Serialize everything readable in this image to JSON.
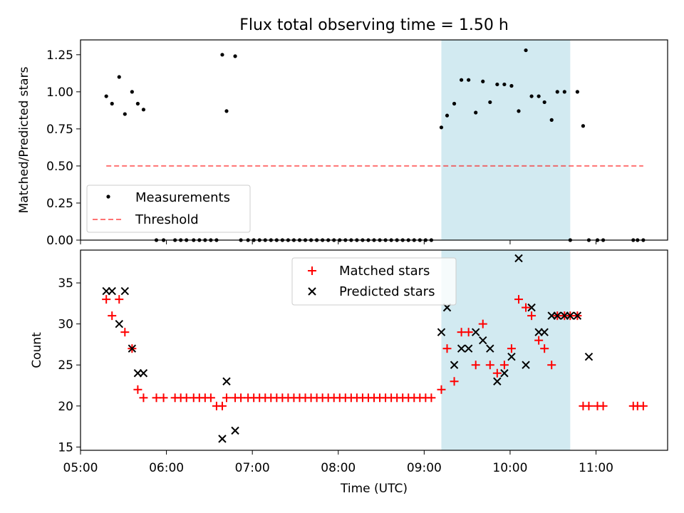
{
  "title": "Flux total observing time = 1.50 h",
  "colors": {
    "band": "#add8e6",
    "threshold": "#ff0000",
    "measurement": "#000000",
    "matched": "#ff0000",
    "predicted": "#000000"
  },
  "chart_data": [
    {
      "type": "scatter",
      "ylabel": "Matched/Predicted stars",
      "ylim": [
        0,
        1.35
      ],
      "yticks": [
        0.0,
        0.25,
        0.5,
        0.75,
        1.0,
        1.25
      ],
      "yticklabels": [
        "0.00",
        "0.25",
        "0.50",
        "0.75",
        "1.00",
        "1.25"
      ],
      "xlim": [
        "05:00",
        "11:50"
      ],
      "legend_position": "lower-left",
      "highlight_span": [
        "09:12",
        "10:42"
      ],
      "series": [
        {
          "name": "Measurements",
          "marker": "dot",
          "x": [
            "05:18",
            "05:22",
            "05:27",
            "05:31",
            "05:36",
            "05:40",
            "05:44",
            "05:53",
            "05:58",
            "06:06",
            "06:10",
            "06:14",
            "06:19",
            "06:23",
            "06:27",
            "06:31",
            "06:35",
            "06:39",
            "06:42",
            "06:48",
            "06:52",
            "06:57",
            "07:01",
            "07:05",
            "07:09",
            "07:13",
            "07:17",
            "07:21",
            "07:25",
            "07:29",
            "07:33",
            "07:37",
            "07:41",
            "07:45",
            "07:49",
            "07:53",
            "07:57",
            "08:01",
            "08:05",
            "08:09",
            "08:13",
            "08:17",
            "08:21",
            "08:25",
            "08:29",
            "08:33",
            "08:37",
            "08:41",
            "08:45",
            "08:49",
            "08:53",
            "08:57",
            "09:01",
            "09:05",
            "09:12",
            "09:16",
            "09:21",
            "09:26",
            "09:31",
            "09:36",
            "09:41",
            "09:46",
            "09:51",
            "09:56",
            "10:01",
            "10:06",
            "10:11",
            "10:15",
            "10:20",
            "10:24",
            "10:29",
            "10:33",
            "10:38",
            "10:42",
            "10:47",
            "10:51",
            "10:55",
            "11:01",
            "11:05",
            "11:26",
            "11:29",
            "11:33"
          ],
          "y": [
            0.97,
            0.92,
            1.1,
            0.85,
            1.0,
            0.92,
            0.88,
            0,
            0,
            0,
            0,
            0,
            0,
            0,
            0,
            0,
            0,
            1.25,
            0.87,
            1.24,
            0,
            0,
            0,
            0,
            0,
            0,
            0,
            0,
            0,
            0,
            0,
            0,
            0,
            0,
            0,
            0,
            0,
            0,
            0,
            0,
            0,
            0,
            0,
            0,
            0,
            0,
            0,
            0,
            0,
            0,
            0,
            0,
            0,
            0,
            0.76,
            0.84,
            0.92,
            1.08,
            1.08,
            0.86,
            1.07,
            0.93,
            1.05,
            1.05,
            1.04,
            0.87,
            1.28,
            0.97,
            0.97,
            0.93,
            0.81,
            1.0,
            1.0,
            0,
            1.0,
            0.77,
            0,
            0,
            0,
            0,
            0,
            0
          ]
        },
        {
          "name": "Threshold",
          "marker": "dashed-line",
          "x": [
            "05:18",
            "11:33"
          ],
          "y": [
            0.5,
            0.5
          ]
        }
      ]
    },
    {
      "type": "scatter",
      "xlabel": "Time (UTC)",
      "ylabel": "Count",
      "ylim": [
        14.6,
        39.0
      ],
      "yticks": [
        15,
        20,
        25,
        30,
        35
      ],
      "xticks": [
        "05:00",
        "06:00",
        "07:00",
        "08:00",
        "09:00",
        "10:00",
        "11:00"
      ],
      "xlim": [
        "05:00",
        "11:50"
      ],
      "legend_position": "upper-center",
      "highlight_span": [
        "09:12",
        "10:42"
      ],
      "series": [
        {
          "name": "Matched stars",
          "marker": "plus",
          "x": [
            "05:18",
            "05:22",
            "05:27",
            "05:31",
            "05:36",
            "05:40",
            "05:44",
            "05:53",
            "05:58",
            "06:06",
            "06:10",
            "06:14",
            "06:19",
            "06:23",
            "06:27",
            "06:31",
            "06:35",
            "06:39",
            "06:42",
            "06:48",
            "06:52",
            "06:57",
            "07:01",
            "07:05",
            "07:09",
            "07:13",
            "07:17",
            "07:21",
            "07:25",
            "07:29",
            "07:33",
            "07:37",
            "07:41",
            "07:45",
            "07:49",
            "07:53",
            "07:57",
            "08:01",
            "08:05",
            "08:09",
            "08:13",
            "08:17",
            "08:21",
            "08:25",
            "08:29",
            "08:33",
            "08:37",
            "08:41",
            "08:45",
            "08:49",
            "08:53",
            "08:57",
            "09:01",
            "09:05",
            "09:12",
            "09:16",
            "09:21",
            "09:26",
            "09:31",
            "09:36",
            "09:41",
            "09:46",
            "09:51",
            "09:56",
            "10:01",
            "10:06",
            "10:11",
            "10:15",
            "10:20",
            "10:24",
            "10:29",
            "10:33",
            "10:38",
            "10:42",
            "10:47",
            "10:51",
            "10:55",
            "11:01",
            "11:05",
            "11:26",
            "11:29",
            "11:33"
          ],
          "y": [
            33,
            31,
            33,
            29,
            27,
            22,
            21,
            21,
            21,
            21,
            21,
            21,
            21,
            21,
            21,
            21,
            20,
            20,
            21,
            21,
            21,
            21,
            21,
            21,
            21,
            21,
            21,
            21,
            21,
            21,
            21,
            21,
            21,
            21,
            21,
            21,
            21,
            21,
            21,
            21,
            21,
            21,
            21,
            21,
            21,
            21,
            21,
            21,
            21,
            21,
            21,
            21,
            21,
            21,
            22,
            27,
            23,
            29,
            29,
            25,
            30,
            25,
            24,
            25,
            27,
            33,
            32,
            31,
            28,
            27,
            25,
            31,
            31,
            31,
            31,
            20,
            20,
            20,
            20,
            20,
            20,
            20
          ]
        },
        {
          "name": "Predicted stars",
          "marker": "x",
          "x": [
            "05:18",
            "05:22",
            "05:27",
            "05:31",
            "05:36",
            "05:40",
            "05:44",
            "06:39",
            "06:42",
            "06:48",
            "09:12",
            "09:16",
            "09:21",
            "09:26",
            "09:31",
            "09:36",
            "09:41",
            "09:46",
            "09:51",
            "09:56",
            "10:01",
            "10:06",
            "10:11",
            "10:15",
            "10:20",
            "10:24",
            "10:29",
            "10:33",
            "10:38",
            "10:42",
            "10:47",
            "10:55"
          ],
          "y": [
            34,
            34,
            30,
            34,
            27,
            24,
            24,
            16,
            23,
            17,
            29,
            32,
            25,
            27,
            27,
            29,
            28,
            27,
            23,
            24,
            26,
            38,
            25,
            32,
            29,
            29,
            31,
            31,
            31,
            31,
            31,
            26
          ]
        }
      ]
    }
  ]
}
